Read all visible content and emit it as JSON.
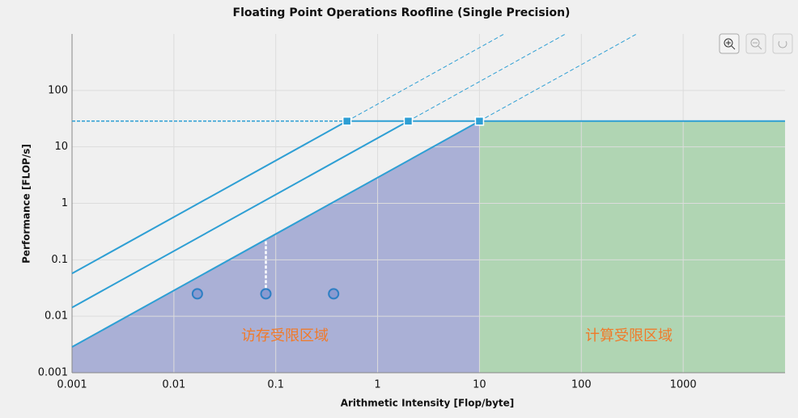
{
  "chart_data": {
    "type": "roofline",
    "title": "Floating Point Operations Roofline (Single Precision)",
    "x_label": "Arithmetic Intensity [Flop/byte]",
    "y_label": "Performance [FLOP/s]",
    "log_scale": true,
    "grid": true,
    "xlim": [
      0.001,
      10000
    ],
    "ylim": [
      0.001,
      1000
    ],
    "xticks": [
      0.001,
      0.01,
      0.1,
      1,
      10,
      100,
      1000
    ],
    "yticks": [
      0.001,
      0.01,
      0.1,
      1,
      10,
      100
    ],
    "peak": 28.6,
    "line_color": "#2e9fd4",
    "ceilings": [
      {
        "bandwidth": 57.2
      },
      {
        "bandwidth": 14.3
      },
      {
        "bandwidth": 2.86
      }
    ],
    "regions": [
      {
        "label": "访存受限区域",
        "color": "#aab0d6"
      },
      {
        "label": "计算受限区域",
        "color": "#b0d5b3"
      }
    ],
    "label_color": "#f07a2a",
    "points": {
      "color": "#2e7fc4",
      "x": [
        0.017,
        0.08,
        0.37
      ],
      "values": [
        0.025,
        0.025,
        0.025
      ]
    }
  }
}
